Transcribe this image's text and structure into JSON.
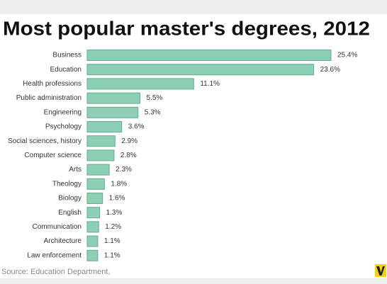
{
  "chart_data": {
    "type": "bar",
    "orientation": "horizontal",
    "title": "Most popular master's degrees, 2012",
    "source": "Source: Education Department,",
    "color": "#8ccfb5",
    "categories": [
      "Business",
      "Education",
      "Health professions",
      "Public administration",
      "Engineering",
      "Psychology",
      "Social sciences, history",
      "Computer science",
      "Arts",
      "Theology",
      "Biology",
      "English",
      "Communication",
      "Architecture",
      "Law enforcement"
    ],
    "values": [
      25.4,
      23.6,
      11.1,
      5.5,
      5.3,
      3.6,
      2.9,
      2.8,
      2.3,
      1.8,
      1.6,
      1.3,
      1.2,
      1.1,
      1.1
    ],
    "value_labels": [
      "25.4%",
      "23.6%",
      "11.1%",
      "5.5%",
      "5.3%",
      "3.6%",
      "2.9%",
      "2.8%",
      "2.3%",
      "1.8%",
      "1.6%",
      "1.3%",
      "1.2%",
      "1.1%",
      "1.1%"
    ]
  }
}
